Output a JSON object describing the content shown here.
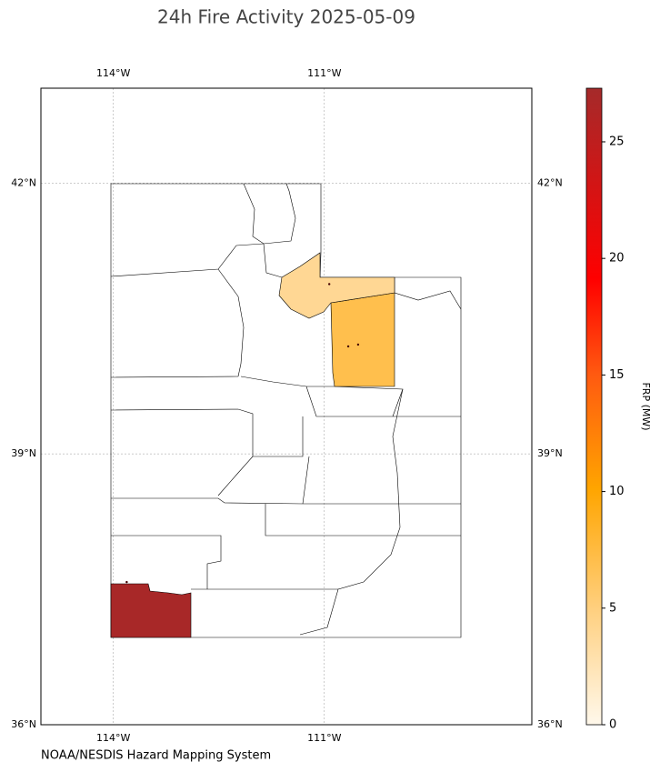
{
  "chart_data": {
    "type": "choropleth",
    "title": "24h Fire Activity 2025-05-09",
    "xlim": [
      -115.03,
      -108.05
    ],
    "ylim": [
      36,
      43.05
    ],
    "xticks": [
      {
        "value": -114,
        "label": "114°W"
      },
      {
        "value": -111,
        "label": "111°W"
      }
    ],
    "yticks": [
      {
        "value": 36,
        "label": "36°N"
      },
      {
        "value": 39,
        "label": "39°N"
      },
      {
        "value": 42,
        "label": "42°N"
      }
    ],
    "grid": true,
    "region_values": [
      27,
      7,
      4
    ],
    "fire_points": {
      "lon": [
        -113.81,
        -110.93,
        -110.66,
        -110.52
      ],
      "lat": [
        37.58,
        40.88,
        40.19,
        40.21
      ]
    },
    "colorbar": {
      "label": "FRP (MW)",
      "lim": [
        0,
        27.3
      ],
      "ticks": [
        0,
        5,
        10,
        15,
        20,
        25
      ]
    },
    "source": "NOAA/NESDIS Hazard Mapping System"
  }
}
